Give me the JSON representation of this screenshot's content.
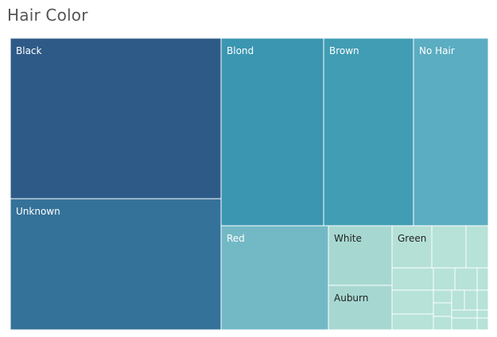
{
  "chart_data": {
    "type": "treemap",
    "title": "Hair Color",
    "colors": {
      "black": "#2e5a87",
      "unknown": "#357299",
      "blond": "#3b96b1",
      "brown": "#409db4",
      "no_hair": "#5badc1",
      "red": "#73b9c5",
      "white": "#a6d8d1",
      "auburn": "#a6d8d1",
      "green": "#b5e0d6",
      "small": "#b6e2d8",
      "label_dark": "#ffffff",
      "label_light": "#222222",
      "border": "#ffffff"
    },
    "labels": {
      "black": "Black",
      "unknown": "Unknown",
      "blond": "Blond",
      "brown": "Brown",
      "no_hair": "No Hair",
      "red": "Red",
      "white": "White",
      "auburn": "Auburn",
      "green": "Green"
    }
  }
}
